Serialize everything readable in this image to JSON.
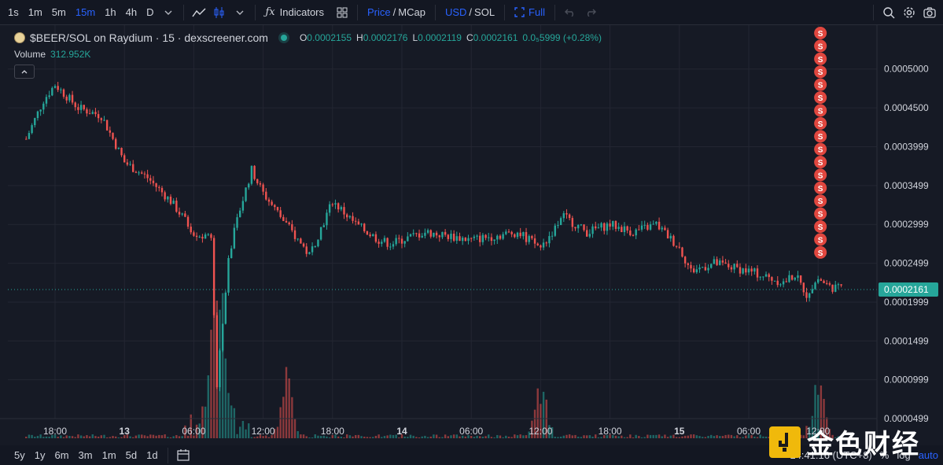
{
  "toolbar": {
    "intervals": [
      "1s",
      "1m",
      "5m",
      "15m",
      "1h",
      "4h",
      "D"
    ],
    "active_interval": "15m",
    "indicators_label": "Indicators",
    "price_label": "Price",
    "mcap_label": "MCap",
    "slash": "/",
    "usd_label": "USD",
    "sol_label": "SOL",
    "full_label": "Full",
    "icons": [
      "chevron-down-icon",
      "line-tool-icon",
      "candles-icon",
      "fx-icon",
      "layout-icon",
      "undo-icon",
      "redo-icon",
      "zoom-icon",
      "settings-icon",
      "camera-icon"
    ]
  },
  "legend": {
    "title": "$BEER/SOL on Raydium · 15 · dexscreener.com",
    "o_key": "O",
    "o": "0.0002155",
    "h_key": "H",
    "h": "0.0002176",
    "l_key": "L",
    "l": "0.0002119",
    "c_key": "C",
    "c": "0.0002161",
    "change": "0.0₅5999 (+0.28%)",
    "volume_label": "Volume",
    "volume": "312.952K"
  },
  "bottom": {
    "ranges": [
      "5y",
      "1y",
      "6m",
      "3m",
      "1m",
      "5d",
      "1d"
    ],
    "time": "14:41:16 (UTC+8)",
    "percent": "%",
    "log": "log",
    "auto": "auto"
  },
  "watermark": {
    "text": "金色财经"
  },
  "colors": {
    "up": "#26a69a",
    "down": "#ef5350",
    "bg": "#161a25",
    "grid": "#232632",
    "accent": "#2962ff"
  },
  "chart_data": {
    "type": "candlestick",
    "title": "$BEER/SOL on Raydium · 15 · dexscreener.com",
    "y_ticks": [
      "0.0005000",
      "0.0004500",
      "0.0003999",
      "0.0003499",
      "0.0002999",
      "0.0002499",
      "0.0001999",
      "0.0001499",
      "0.0000999",
      "0.0000499"
    ],
    "y_tick_values": [
      0.0005,
      0.00045,
      0.0003999,
      0.0003499,
      0.0002999,
      0.0002499,
      0.0001999,
      0.0001499,
      9.99e-05,
      4.99e-05
    ],
    "ylim": [
      4.99e-05,
      0.00052
    ],
    "x_ticks": [
      "18:00",
      "13",
      "06:00",
      "12:00",
      "18:00",
      "14",
      "06:00",
      "12:00",
      "18:00",
      "15",
      "06:00",
      "12:00"
    ],
    "x_tick_hours": [
      0,
      6,
      12,
      18,
      24,
      30,
      36,
      42,
      48,
      54,
      60,
      66
    ],
    "last_price": "0.0002161",
    "last_price_value": 0.0002161,
    "price_path_hours": [
      -2.5,
      -1,
      0,
      2,
      4,
      6,
      8,
      10,
      12,
      13.5,
      14,
      15,
      16,
      17,
      18,
      20,
      22,
      24,
      26,
      27,
      28,
      29,
      32,
      36,
      40,
      42,
      44,
      46,
      48,
      50,
      52,
      54,
      55,
      57,
      60,
      62,
      63,
      64,
      65,
      66,
      67,
      68
    ],
    "price_path_values": [
      0.00041,
      0.00046,
      0.00048,
      0.00045,
      0.00044,
      0.00038,
      0.00036,
      0.00033,
      0.00029,
      0.00028,
      9e-05,
      0.00026,
      0.00032,
      0.00037,
      0.00034,
      0.0003,
      0.00026,
      0.00033,
      0.0003,
      0.00029,
      0.00028,
      0.000275,
      0.00029,
      0.00028,
      0.00029,
      0.00027,
      0.00031,
      0.00029,
      0.0003,
      0.00029,
      0.0003,
      0.00027,
      0.00024,
      0.00025,
      0.00024,
      0.00023,
      0.000225,
      0.000235,
      0.00021,
      0.00023,
      0.00022,
      0.0002161
    ],
    "volume_spike_hours": [
      13.8,
      14.1,
      14.4,
      20,
      42,
      66
    ],
    "sell_markers": {
      "count": 18,
      "hour": 66.2,
      "label": "S"
    }
  }
}
